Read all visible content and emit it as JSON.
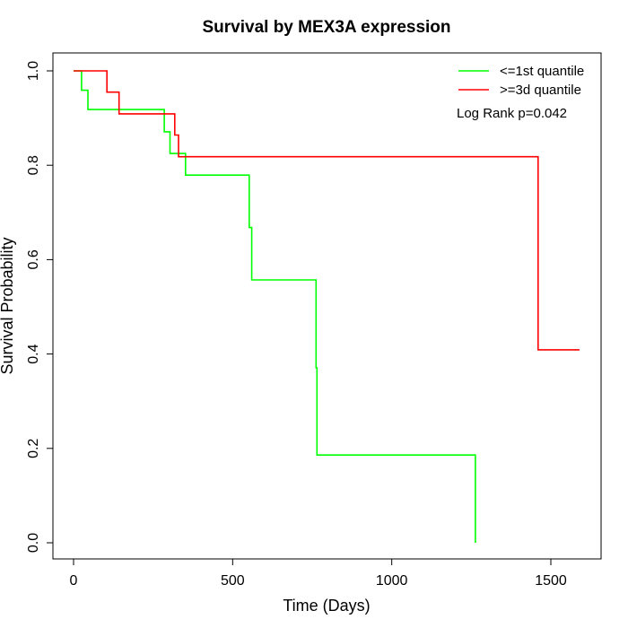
{
  "chart_data": {
    "type": "line",
    "title": "Survival by MEX3A expression",
    "xlabel": "Time (Days)",
    "ylabel": "Survival Probability",
    "xlim": [
      0,
      1650
    ],
    "ylim": [
      0,
      1.0
    ],
    "xticks": [
      0,
      500,
      1000,
      1500
    ],
    "xtick_labels": [
      "0",
      "500",
      "1000",
      "1500"
    ],
    "yticks": [
      0.0,
      0.2,
      0.4,
      0.6,
      0.8,
      1.0
    ],
    "ytick_labels": [
      "0.0",
      "0.2",
      "0.4",
      "0.6",
      "0.8",
      "1.0"
    ],
    "grid": false,
    "legend_position": "top-right",
    "annotation": "Log Rank p=0.042",
    "series": [
      {
        "name": "<=1st quantile",
        "color": "#00ff00",
        "step": true,
        "points": [
          [
            0,
            1.0
          ],
          [
            25,
            1.0
          ],
          [
            25,
            0.959
          ],
          [
            45,
            0.959
          ],
          [
            45,
            0.918
          ],
          [
            285,
            0.918
          ],
          [
            285,
            0.871
          ],
          [
            303,
            0.871
          ],
          [
            303,
            0.825
          ],
          [
            352,
            0.825
          ],
          [
            352,
            0.779
          ],
          [
            552,
            0.779
          ],
          [
            552,
            0.668
          ],
          [
            560,
            0.668
          ],
          [
            560,
            0.557
          ],
          [
            762,
            0.557
          ],
          [
            762,
            0.371
          ],
          [
            765,
            0.371
          ],
          [
            765,
            0.186
          ],
          [
            1263,
            0.186
          ],
          [
            1263,
            0.0
          ]
        ]
      },
      {
        "name": ">=3d quantile",
        "color": "#ff0000",
        "step": true,
        "points": [
          [
            0,
            1.0
          ],
          [
            105,
            1.0
          ],
          [
            105,
            0.955
          ],
          [
            143,
            0.955
          ],
          [
            143,
            0.909
          ],
          [
            318,
            0.909
          ],
          [
            318,
            0.864
          ],
          [
            330,
            0.864
          ],
          [
            330,
            0.818
          ],
          [
            1460,
            0.818
          ],
          [
            1460,
            0.409
          ],
          [
            1590,
            0.409
          ]
        ]
      }
    ]
  }
}
